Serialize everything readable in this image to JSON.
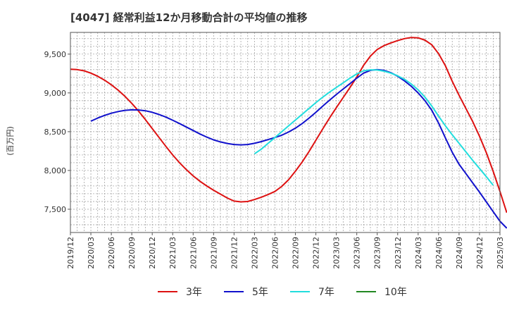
{
  "chart_data": {
    "type": "line",
    "title": "[4047]  経常利益12か月移動合計の平均値の推移",
    "ylabel": "(百万円)",
    "xlabel": "",
    "ylim": [
      7200,
      9780
    ],
    "yticks": [
      7500,
      8000,
      8500,
      9000,
      9500
    ],
    "ytick_labels": [
      "7,500",
      "8,000",
      "8,500",
      "9,000",
      "9,500"
    ],
    "x_start": "2019-12",
    "x_end": "2025-03",
    "xtick_labels": [
      "2019/12",
      "2020/03",
      "2020/06",
      "2020/09",
      "2020/12",
      "2021/03",
      "2021/06",
      "2021/09",
      "2021/12",
      "2022/03",
      "2022/06",
      "2022/09",
      "2022/12",
      "2023/03",
      "2023/06",
      "2023/09",
      "2023/12",
      "2024/03",
      "2024/06",
      "2024/09",
      "2024/12",
      "2025/03"
    ],
    "grid": true,
    "legend_position": "bottom",
    "series": [
      {
        "name": "3年",
        "color": "#dd1111",
        "points": [
          [
            "2019-12",
            9305
          ],
          [
            "2020-01",
            9300
          ],
          [
            "2020-02",
            9285
          ],
          [
            "2020-03",
            9255
          ],
          [
            "2020-04",
            9215
          ],
          [
            "2020-05",
            9165
          ],
          [
            "2020-06",
            9105
          ],
          [
            "2020-07",
            9035
          ],
          [
            "2020-08",
            8955
          ],
          [
            "2020-09",
            8865
          ],
          [
            "2020-10",
            8765
          ],
          [
            "2020-11",
            8655
          ],
          [
            "2020-12",
            8540
          ],
          [
            "2021-01",
            8425
          ],
          [
            "2021-02",
            8310
          ],
          [
            "2021-03",
            8200
          ],
          [
            "2021-04",
            8100
          ],
          [
            "2021-05",
            8010
          ],
          [
            "2021-06",
            7930
          ],
          [
            "2021-07",
            7860
          ],
          [
            "2021-08",
            7800
          ],
          [
            "2021-09",
            7745
          ],
          [
            "2021-10",
            7695
          ],
          [
            "2021-11",
            7645
          ],
          [
            "2021-12",
            7605
          ],
          [
            "2022-01",
            7595
          ],
          [
            "2022-02",
            7600
          ],
          [
            "2022-03",
            7625
          ],
          [
            "2022-04",
            7655
          ],
          [
            "2022-05",
            7690
          ],
          [
            "2022-06",
            7730
          ],
          [
            "2022-07",
            7795
          ],
          [
            "2022-08",
            7880
          ],
          [
            "2022-09",
            7990
          ],
          [
            "2022-10",
            8110
          ],
          [
            "2022-11",
            8245
          ],
          [
            "2022-12",
            8390
          ],
          [
            "2023-01",
            8535
          ],
          [
            "2023-02",
            8675
          ],
          [
            "2023-03",
            8810
          ],
          [
            "2023-04",
            8940
          ],
          [
            "2023-05",
            9070
          ],
          [
            "2023-06",
            9205
          ],
          [
            "2023-07",
            9355
          ],
          [
            "2023-08",
            9475
          ],
          [
            "2023-09",
            9560
          ],
          [
            "2023-10",
            9610
          ],
          [
            "2023-11",
            9645
          ],
          [
            "2023-12",
            9675
          ],
          [
            "2024-01",
            9700
          ],
          [
            "2024-02",
            9715
          ],
          [
            "2024-03",
            9710
          ],
          [
            "2024-04",
            9680
          ],
          [
            "2024-05",
            9620
          ],
          [
            "2024-06",
            9505
          ],
          [
            "2024-07",
            9350
          ],
          [
            "2024-08",
            9150
          ],
          [
            "2024-09",
            8970
          ],
          [
            "2024-10",
            8800
          ],
          [
            "2024-11",
            8630
          ],
          [
            "2024-12",
            8440
          ],
          [
            "2025-01",
            8230
          ],
          [
            "2025-02",
            7990
          ],
          [
            "2025-03",
            7730
          ],
          [
            "2025-04",
            7455
          ]
        ]
      },
      {
        "name": "5年",
        "color": "#1111cc",
        "points": [
          [
            "2020-03",
            8635
          ],
          [
            "2020-04",
            8675
          ],
          [
            "2020-05",
            8710
          ],
          [
            "2020-06",
            8738
          ],
          [
            "2020-07",
            8760
          ],
          [
            "2020-08",
            8775
          ],
          [
            "2020-09",
            8782
          ],
          [
            "2020-10",
            8780
          ],
          [
            "2020-11",
            8770
          ],
          [
            "2020-12",
            8750
          ],
          [
            "2021-01",
            8722
          ],
          [
            "2021-02",
            8688
          ],
          [
            "2021-03",
            8648
          ],
          [
            "2021-04",
            8605
          ],
          [
            "2021-05",
            8560
          ],
          [
            "2021-06",
            8515
          ],
          [
            "2021-07",
            8470
          ],
          [
            "2021-08",
            8430
          ],
          [
            "2021-09",
            8395
          ],
          [
            "2021-10",
            8368
          ],
          [
            "2021-11",
            8348
          ],
          [
            "2021-12",
            8335
          ],
          [
            "2022-01",
            8330
          ],
          [
            "2022-02",
            8335
          ],
          [
            "2022-03",
            8350
          ],
          [
            "2022-04",
            8372
          ],
          [
            "2022-05",
            8398
          ],
          [
            "2022-06",
            8425
          ],
          [
            "2022-07",
            8455
          ],
          [
            "2022-08",
            8495
          ],
          [
            "2022-09",
            8545
          ],
          [
            "2022-10",
            8605
          ],
          [
            "2022-11",
            8675
          ],
          [
            "2022-12",
            8750
          ],
          [
            "2023-01",
            8830
          ],
          [
            "2023-02",
            8905
          ],
          [
            "2023-03",
            8980
          ],
          [
            "2023-04",
            9050
          ],
          [
            "2023-05",
            9120
          ],
          [
            "2023-06",
            9190
          ],
          [
            "2023-07",
            9255
          ],
          [
            "2023-08",
            9290
          ],
          [
            "2023-09",
            9300
          ],
          [
            "2023-10",
            9290
          ],
          [
            "2023-11",
            9260
          ],
          [
            "2023-12",
            9215
          ],
          [
            "2024-01",
            9155
          ],
          [
            "2024-02",
            9085
          ],
          [
            "2024-03",
            9000
          ],
          [
            "2024-04",
            8900
          ],
          [
            "2024-05",
            8775
          ],
          [
            "2024-06",
            8610
          ],
          [
            "2024-07",
            8420
          ],
          [
            "2024-08",
            8235
          ],
          [
            "2024-09",
            8080
          ],
          [
            "2024-10",
            7960
          ],
          [
            "2024-11",
            7840
          ],
          [
            "2024-12",
            7720
          ],
          [
            "2025-01",
            7595
          ],
          [
            "2025-02",
            7470
          ],
          [
            "2025-03",
            7345
          ],
          [
            "2025-04",
            7255
          ]
        ]
      },
      {
        "name": "7年",
        "color": "#22dddd",
        "points": [
          [
            "2022-03",
            8215
          ],
          [
            "2022-04",
            8275
          ],
          [
            "2022-05",
            8350
          ],
          [
            "2022-06",
            8425
          ],
          [
            "2022-07",
            8500
          ],
          [
            "2022-08",
            8575
          ],
          [
            "2022-09",
            8650
          ],
          [
            "2022-10",
            8725
          ],
          [
            "2022-11",
            8800
          ],
          [
            "2022-12",
            8875
          ],
          [
            "2023-01",
            8945
          ],
          [
            "2023-02",
            9010
          ],
          [
            "2023-03",
            9070
          ],
          [
            "2023-04",
            9130
          ],
          [
            "2023-05",
            9190
          ],
          [
            "2023-06",
            9245
          ],
          [
            "2023-07",
            9285
          ],
          [
            "2023-08",
            9298
          ],
          [
            "2023-09",
            9295
          ],
          [
            "2023-10",
            9280
          ],
          [
            "2023-11",
            9255
          ],
          [
            "2023-12",
            9220
          ],
          [
            "2024-01",
            9175
          ],
          [
            "2024-02",
            9115
          ],
          [
            "2024-03",
            9040
          ],
          [
            "2024-04",
            8945
          ],
          [
            "2024-05",
            8830
          ],
          [
            "2024-06",
            8700
          ],
          [
            "2024-07",
            8575
          ],
          [
            "2024-08",
            8460
          ],
          [
            "2024-09",
            8350
          ],
          [
            "2024-10",
            8240
          ],
          [
            "2024-11",
            8130
          ],
          [
            "2024-12",
            8025
          ],
          [
            "2025-01",
            7920
          ],
          [
            "2025-02",
            7810
          ]
        ]
      },
      {
        "name": "10年",
        "color": "#228822",
        "points": []
      }
    ]
  }
}
